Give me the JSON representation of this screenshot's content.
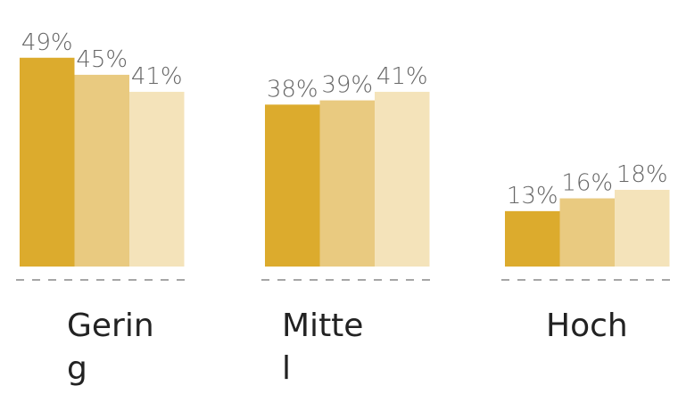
{
  "chart_data": {
    "type": "bar",
    "categories": [
      "Gering",
      "Mittel",
      "Hoch"
    ],
    "series": [
      {
        "color": "#dcab2d",
        "values": [
          49,
          38,
          13
        ],
        "value_labels": [
          "49%",
          "38%",
          "13%"
        ]
      },
      {
        "color": "#e9ca80",
        "values": [
          45,
          39,
          16
        ],
        "value_labels": [
          "45%",
          "39%",
          "16%"
        ]
      },
      {
        "color": "#f4e3ba",
        "values": [
          41,
          41,
          18
        ],
        "value_labels": [
          "41%",
          "41%",
          "18%"
        ]
      }
    ]
  }
}
